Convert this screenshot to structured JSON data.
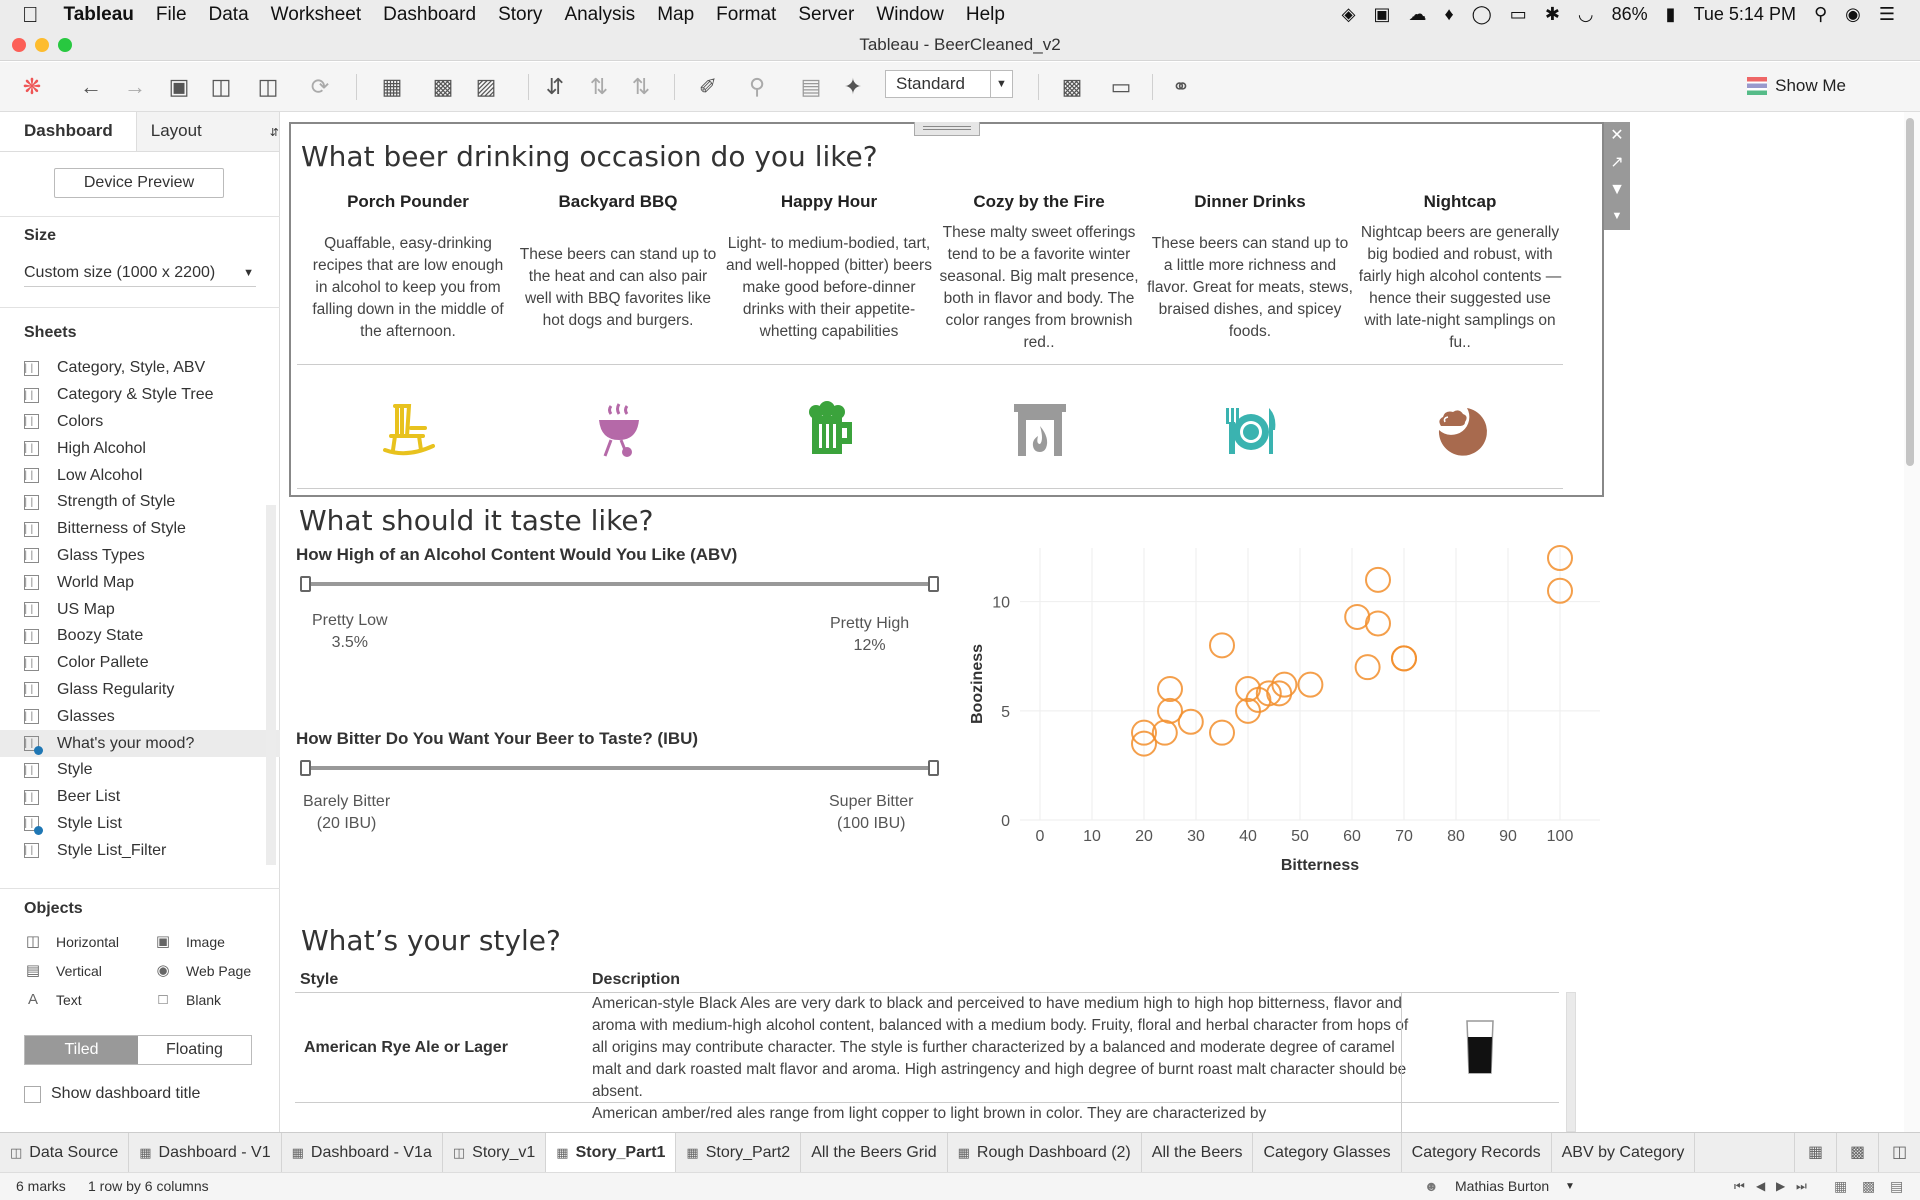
{
  "menubar": {
    "app": "Tableau",
    "items": [
      "File",
      "Data",
      "Worksheet",
      "Dashboard",
      "Story",
      "Analysis",
      "Map",
      "Format",
      "Server",
      "Window",
      "Help"
    ],
    "battery": "86%",
    "clock": "Tue 5:14 PM"
  },
  "window": {
    "title": "Tableau - BeerCleaned_v2"
  },
  "toolbar": {
    "fit": "Standard",
    "show_me": "Show Me"
  },
  "left": {
    "tab_dashboard": "Dashboard",
    "tab_layout": "Layout",
    "device_preview": "Device Preview",
    "size_title": "Size",
    "size_value": "Custom size (1000 x 2200)",
    "sheets_title": "Sheets",
    "sheets": [
      "Category, Style, ABV",
      "Category & Style Tree",
      "Colors",
      "High Alcohol",
      "Low Alcohol",
      "Strength of Style",
      "Bitterness of Style",
      "Glass Types",
      "World Map",
      "US Map",
      "Boozy State",
      "Color Pallete",
      "Glass Regularity",
      "Glasses",
      "What's your mood?",
      "Style",
      "Beer List",
      "Style List",
      "Style List_Filter"
    ],
    "objects_title": "Objects",
    "objects": [
      "Horizontal",
      "Image",
      "Vertical",
      "Web Page",
      "Text",
      "Blank"
    ],
    "tiled": "Tiled",
    "floating": "Floating",
    "show_title": "Show dashboard title"
  },
  "occasion": {
    "title": "What beer drinking occasion do you like?",
    "items": [
      {
        "name": "Porch Pounder",
        "desc": "Quaffable, easy-drinking recipes that are low enough in alcohol to keep you from falling down in the middle of the afternoon.",
        "icon": "rocking-chair-icon",
        "color": "#e8c21e"
      },
      {
        "name": "Backyard BBQ",
        "desc": "These beers can stand up to the heat and can also pair well with BBQ favorites like hot dogs and burgers.",
        "icon": "grill-icon",
        "color": "#b569a8"
      },
      {
        "name": "Happy Hour",
        "desc": "Light- to medium-bodied, tart, and well-hopped (bitter) beers make good before-dinner drinks with their appetite-whetting capabilities",
        "icon": "beer-mug-icon",
        "color": "#3ba33c"
      },
      {
        "name": "Cozy by the Fire",
        "desc": "These malty sweet offerings tend to be a favorite winter seasonal. Big malt presence, both in flavor and body. The color ranges from brownish red..",
        "icon": "fireplace-icon",
        "color": "#9a9a9a"
      },
      {
        "name": "Dinner Drinks",
        "desc": "These beers can stand up to a little more richness and flavor. Great for meats, stews, braised dishes, and spicey foods.",
        "icon": "plate-icon",
        "color": "#3ab3b0"
      },
      {
        "name": "Nightcap",
        "desc": "Nightcap beers are generally big bodied and robust, with fairly high alcohol contents — hence their suggested use with late-night samplings on fu..",
        "icon": "moon-cloud-icon",
        "color": "#a86a4e"
      }
    ]
  },
  "taste": {
    "title": "What should it taste like?",
    "abv": {
      "label": "How High of an Alcohol Content Would You Like (ABV)",
      "low_text": "Pretty Low",
      "low_val": "3.5%",
      "high_text": "Pretty High",
      "high_val": "12%"
    },
    "ibu": {
      "label": "How Bitter Do You Want Your Beer to Taste? (IBU)",
      "low_text": "Barely Bitter",
      "low_val": "(20 IBU)",
      "high_text": "Super Bitter",
      "high_val": "(100 IBU)"
    }
  },
  "chart_data": {
    "type": "scatter",
    "xlabel": "Bitterness",
    "ylabel": "Booziness",
    "xlim": [
      0,
      100
    ],
    "ylim": [
      0,
      12
    ],
    "x_ticks": [
      0,
      10,
      20,
      30,
      40,
      50,
      60,
      70,
      80,
      90,
      100
    ],
    "y_ticks": [
      0,
      5,
      10
    ],
    "color": "#f28e2b",
    "grid": true,
    "points": [
      [
        20,
        4
      ],
      [
        20,
        3.5
      ],
      [
        24,
        4
      ],
      [
        25,
        5
      ],
      [
        25,
        6
      ],
      [
        29,
        4.5
      ],
      [
        35,
        4
      ],
      [
        35,
        8
      ],
      [
        40,
        5
      ],
      [
        40,
        6
      ],
      [
        42,
        5.5
      ],
      [
        44,
        5.8
      ],
      [
        46,
        5.8
      ],
      [
        47,
        6.2
      ],
      [
        52,
        6.2
      ],
      [
        61,
        9.3
      ],
      [
        63,
        7
      ],
      [
        65,
        9
      ],
      [
        65,
        11
      ],
      [
        70,
        7.4
      ],
      [
        70,
        7.4
      ],
      [
        100,
        10.5
      ],
      [
        100,
        12
      ]
    ]
  },
  "style": {
    "title": "What’s your style?",
    "col_style": "Style",
    "col_desc": "Description",
    "rows": [
      {
        "name": "American Rye Ale or Lager",
        "desc": "American-style Black Ales are very dark to black and perceived to have medium high to high hop bitterness, flavor and aroma with medium-high alcohol content, balanced with a medium body. Fruity, floral and herbal character from hops of all origins may contribute character. The style is further characterized by a balanced and moderate degree of caramel malt and dark roasted malt flavor and aroma. High astringency and high degree of burnt roast malt character should be absent."
      },
      {
        "name": "",
        "desc": "American amber/red ales range from light copper to light brown in color. They are characterized by"
      }
    ]
  },
  "tabs": [
    "Data Source",
    "Dashboard - V1",
    "Dashboard - V1a",
    "Story_v1",
    "Story_Part1",
    "Story_Part2",
    "All the Beers Grid",
    "Rough Dashboard (2)",
    "All the Beers",
    "Category Glasses",
    "Category Records",
    "ABV by Category"
  ],
  "status": {
    "marks": "6 marks",
    "rows": "1 row by 6 columns",
    "user": "Mathias Burton"
  }
}
